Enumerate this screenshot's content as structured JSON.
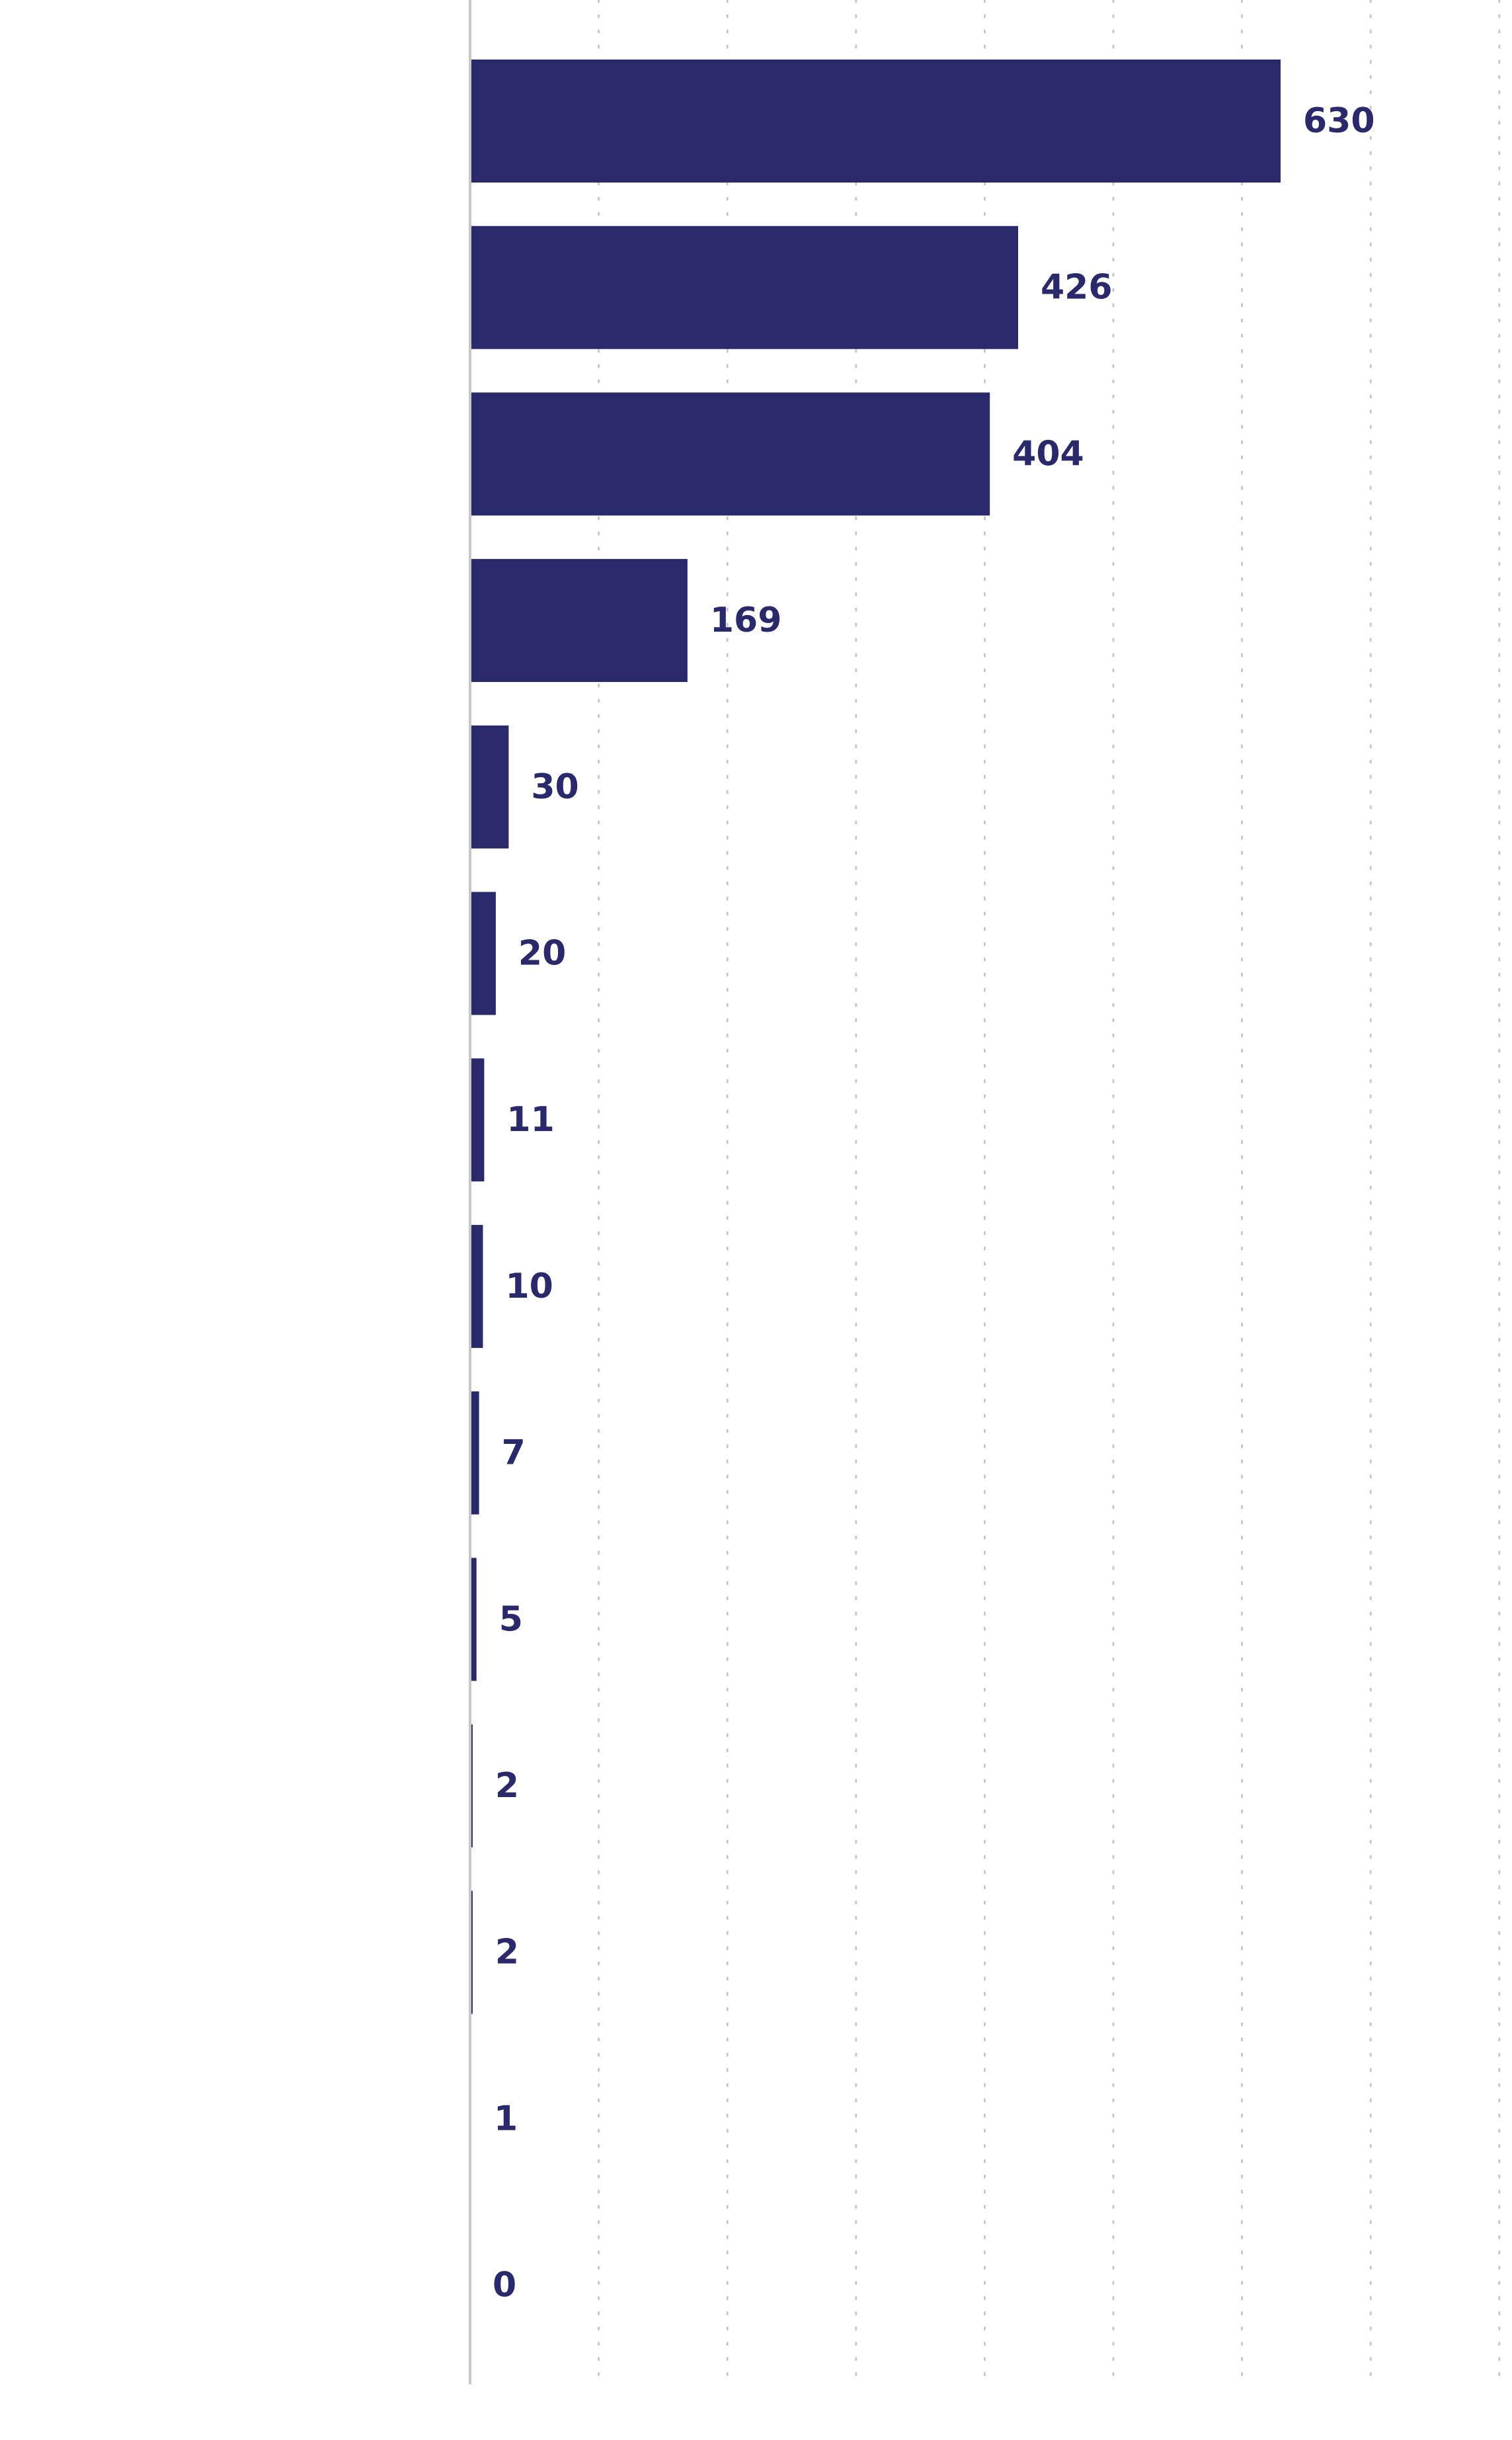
{
  "chart_data": {
    "type": "bar",
    "orientation": "horizontal",
    "categories": [
      "",
      "",
      "",
      "",
      "",
      "",
      "",
      "",
      "",
      "",
      "",
      "",
      "",
      ""
    ],
    "values": [
      630,
      426,
      404,
      169,
      30,
      20,
      11,
      10,
      7,
      5,
      2,
      2,
      1,
      0
    ],
    "data_labels": [
      "630",
      "426",
      "404",
      "169",
      "30",
      "20",
      "11",
      "10",
      "7",
      "5",
      "2",
      "2",
      "1",
      "0"
    ],
    "title": "",
    "xlabel": "",
    "ylabel": "",
    "xlim": [
      0,
      800
    ],
    "grid": true,
    "grid_style": "dotted",
    "legend": "none",
    "colors": {
      "bar": "#29296b",
      "label": "#29296b",
      "grid": "#c8c8c8",
      "axis": "#c8c8c8"
    }
  }
}
